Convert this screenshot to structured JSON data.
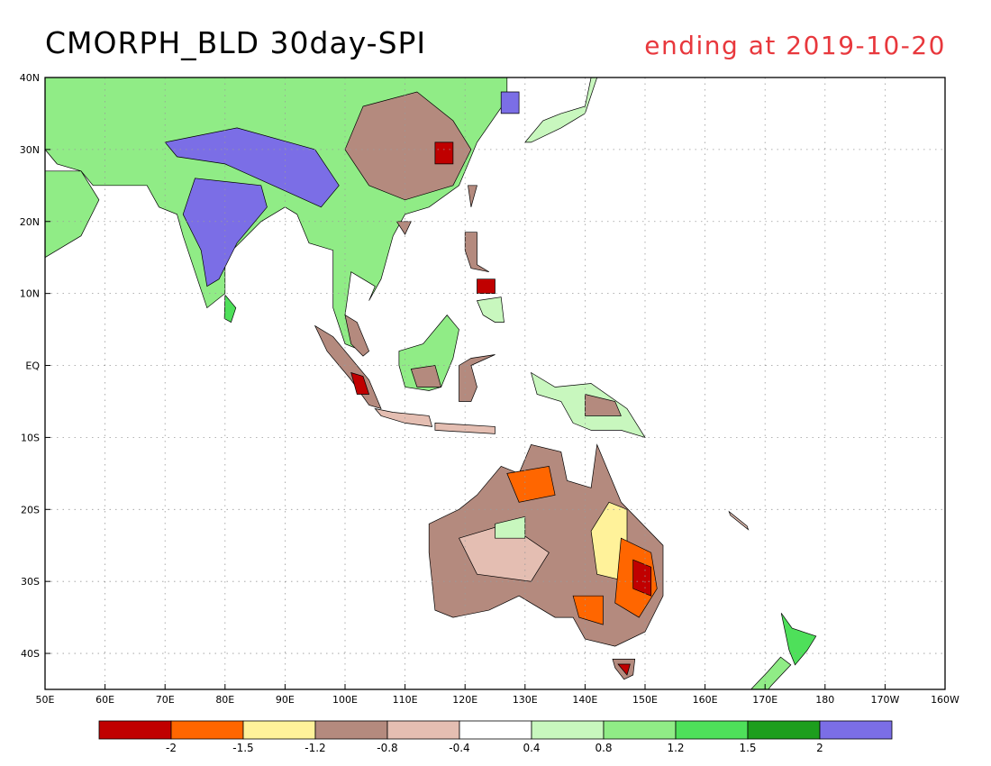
{
  "header": {
    "title": "CMORPH_BLD 30day-SPI",
    "subtitle": "ending at 2019-10-20",
    "subtitle_color": "#e8383d"
  },
  "map": {
    "lon_range": [
      50,
      200
    ],
    "lat_range": [
      -45,
      40
    ],
    "lon_ticks": [
      {
        "lon": 50,
        "label": "50E"
      },
      {
        "lon": 60,
        "label": "60E"
      },
      {
        "lon": 70,
        "label": "70E"
      },
      {
        "lon": 80,
        "label": "80E"
      },
      {
        "lon": 90,
        "label": "90E"
      },
      {
        "lon": 100,
        "label": "100E"
      },
      {
        "lon": 110,
        "label": "110E"
      },
      {
        "lon": 120,
        "label": "120E"
      },
      {
        "lon": 130,
        "label": "130E"
      },
      {
        "lon": 140,
        "label": "140E"
      },
      {
        "lon": 150,
        "label": "150E"
      },
      {
        "lon": 160,
        "label": "160E"
      },
      {
        "lon": 170,
        "label": "170E"
      },
      {
        "lon": 180,
        "label": "180"
      },
      {
        "lon": 190,
        "label": "170W"
      },
      {
        "lon": 200,
        "label": "160W"
      }
    ],
    "lat_ticks": [
      {
        "lat": 40,
        "label": "40N"
      },
      {
        "lat": 30,
        "label": "30N"
      },
      {
        "lat": 20,
        "label": "20N"
      },
      {
        "lat": 10,
        "label": "10N"
      },
      {
        "lat": 0,
        "label": "EQ"
      },
      {
        "lat": -10,
        "label": "10S"
      },
      {
        "lat": -20,
        "label": "20S"
      },
      {
        "lat": -30,
        "label": "30S"
      },
      {
        "lat": -40,
        "label": "40S"
      }
    ],
    "grid": true
  },
  "legend": {
    "colors": [
      "#c00000",
      "#ff6600",
      "#fff29a",
      "#b48a7e",
      "#e4beb2",
      "#ffffff",
      "#c8f7be",
      "#90ec86",
      "#4ee05a",
      "#1d9e1d",
      "#7b6ee6"
    ],
    "labels": [
      "-2",
      "-1.5",
      "-1.2",
      "-0.8",
      "-0.4",
      "0.4",
      "0.8",
      "1.2",
      "1.5",
      "2"
    ]
  }
}
